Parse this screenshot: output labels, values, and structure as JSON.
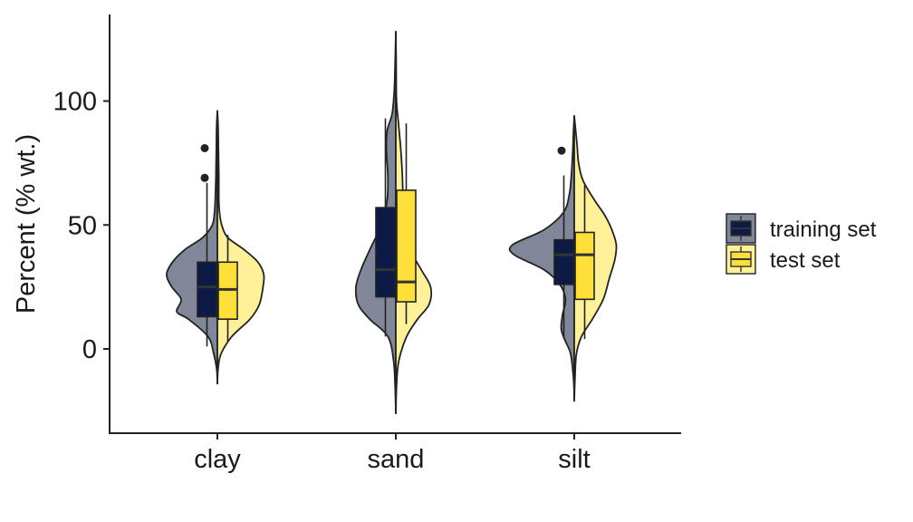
{
  "chart_data": {
    "type": "split-violin-box",
    "ylabel": "Percent (% wt.)",
    "xlabel": "",
    "ylim": [
      -33,
      135
    ],
    "yticks": [
      0,
      50,
      100
    ],
    "categories": [
      "clay",
      "sand",
      "silt"
    ],
    "legend": {
      "position": "right",
      "title": ""
    },
    "grid": false,
    "colors": {
      "training_violin": "#7f8799",
      "training_box": "#0c1a45",
      "test_violin": "#fff09a",
      "test_box": "#ffe03a",
      "outline": "#222222"
    },
    "series": [
      {
        "name": "training set",
        "side": "left",
        "groups": [
          {
            "category": "clay",
            "box": {
              "q1": 13,
              "median": 25,
              "q3": 35,
              "whisker_low": 1,
              "whisker_high": 67
            },
            "outliers": [
              69,
              81
            ],
            "violin_profile": [
              [
                -14,
                0.0
              ],
              [
                -8,
                0.01
              ],
              [
                -2,
                0.05
              ],
              [
                5,
                0.13
              ],
              [
                12,
                0.4
              ],
              [
                15,
                0.56
              ],
              [
                20,
                0.5
              ],
              [
                25,
                0.63
              ],
              [
                30,
                0.7
              ],
              [
                35,
                0.62
              ],
              [
                40,
                0.45
              ],
              [
                45,
                0.2
              ],
              [
                50,
                0.07
              ],
              [
                55,
                0.04
              ],
              [
                60,
                0.03
              ],
              [
                70,
                0.02
              ],
              [
                80,
                0.015
              ],
              [
                90,
                0.01
              ],
              [
                96,
                0.0
              ]
            ]
          },
          {
            "category": "sand",
            "box": {
              "q1": 21,
              "median": 32,
              "q3": 57,
              "whisker_low": 5,
              "whisker_high": 93
            },
            "outliers": [],
            "violin_profile": [
              [
                -26,
                0.0
              ],
              [
                -15,
                0.01
              ],
              [
                -5,
                0.03
              ],
              [
                5,
                0.11
              ],
              [
                12,
                0.36
              ],
              [
                18,
                0.52
              ],
              [
                25,
                0.55
              ],
              [
                32,
                0.48
              ],
              [
                40,
                0.36
              ],
              [
                50,
                0.2
              ],
              [
                60,
                0.12
              ],
              [
                70,
                0.11
              ],
              [
                80,
                0.13
              ],
              [
                88,
                0.12
              ],
              [
                95,
                0.05
              ],
              [
                105,
                0.02
              ],
              [
                115,
                0.01
              ],
              [
                128,
                0.0
              ]
            ]
          },
          {
            "category": "silt",
            "box": {
              "q1": 26,
              "median": 38,
              "q3": 44,
              "whisker_low": 4,
              "whisker_high": 70
            },
            "outliers": [
              80
            ],
            "violin_profile": [
              [
                -21,
                0.0
              ],
              [
                -12,
                0.01
              ],
              [
                -2,
                0.05
              ],
              [
                3,
                0.12
              ],
              [
                8,
                0.18
              ],
              [
                14,
                0.16
              ],
              [
                20,
                0.12
              ],
              [
                26,
                0.2
              ],
              [
                32,
                0.42
              ],
              [
                38,
                0.83
              ],
              [
                42,
                0.85
              ],
              [
                48,
                0.42
              ],
              [
                55,
                0.15
              ],
              [
                62,
                0.07
              ],
              [
                70,
                0.04
              ],
              [
                80,
                0.02
              ],
              [
                88,
                0.01
              ],
              [
                94,
                0.0
              ]
            ]
          }
        ]
      },
      {
        "name": "test set",
        "side": "right",
        "groups": [
          {
            "category": "clay",
            "box": {
              "q1": 12,
              "median": 24,
              "q3": 35,
              "whisker_low": 3,
              "whisker_high": 46
            },
            "outliers": [],
            "violin_profile": [
              [
                -14,
                0.0
              ],
              [
                -8,
                0.01
              ],
              [
                -2,
                0.05
              ],
              [
                5,
                0.2
              ],
              [
                12,
                0.45
              ],
              [
                18,
                0.58
              ],
              [
                25,
                0.63
              ],
              [
                30,
                0.64
              ],
              [
                35,
                0.56
              ],
              [
                40,
                0.37
              ],
              [
                45,
                0.14
              ],
              [
                50,
                0.06
              ],
              [
                55,
                0.03
              ],
              [
                60,
                0.02
              ],
              [
                70,
                0.02
              ],
              [
                80,
                0.015
              ],
              [
                90,
                0.01
              ],
              [
                96,
                0.0
              ]
            ]
          },
          {
            "category": "sand",
            "box": {
              "q1": 19,
              "median": 27,
              "q3": 64,
              "whisker_low": 10,
              "whisker_high": 91
            },
            "outliers": [],
            "violin_profile": [
              [
                -26,
                0.0
              ],
              [
                -15,
                0.01
              ],
              [
                -5,
                0.04
              ],
              [
                5,
                0.15
              ],
              [
                12,
                0.3
              ],
              [
                18,
                0.46
              ],
              [
                25,
                0.48
              ],
              [
                32,
                0.35
              ],
              [
                40,
                0.2
              ],
              [
                50,
                0.12
              ],
              [
                60,
                0.1
              ],
              [
                70,
                0.09
              ],
              [
                80,
                0.07
              ],
              [
                90,
                0.04
              ],
              [
                100,
                0.01
              ],
              [
                115,
                0.005
              ],
              [
                128,
                0.0
              ]
            ]
          },
          {
            "category": "silt",
            "box": {
              "q1": 20,
              "median": 38,
              "q3": 47,
              "whisker_low": 4,
              "whisker_high": 66
            },
            "outliers": [],
            "violin_profile": [
              [
                -21,
                0.0
              ],
              [
                -12,
                0.01
              ],
              [
                -2,
                0.03
              ],
              [
                5,
                0.1
              ],
              [
                12,
                0.25
              ],
              [
                20,
                0.4
              ],
              [
                28,
                0.48
              ],
              [
                36,
                0.56
              ],
              [
                42,
                0.58
              ],
              [
                48,
                0.52
              ],
              [
                54,
                0.42
              ],
              [
                60,
                0.28
              ],
              [
                68,
                0.12
              ],
              [
                75,
                0.06
              ],
              [
                82,
                0.04
              ],
              [
                88,
                0.02
              ],
              [
                94,
                0.0
              ]
            ]
          }
        ]
      }
    ]
  }
}
